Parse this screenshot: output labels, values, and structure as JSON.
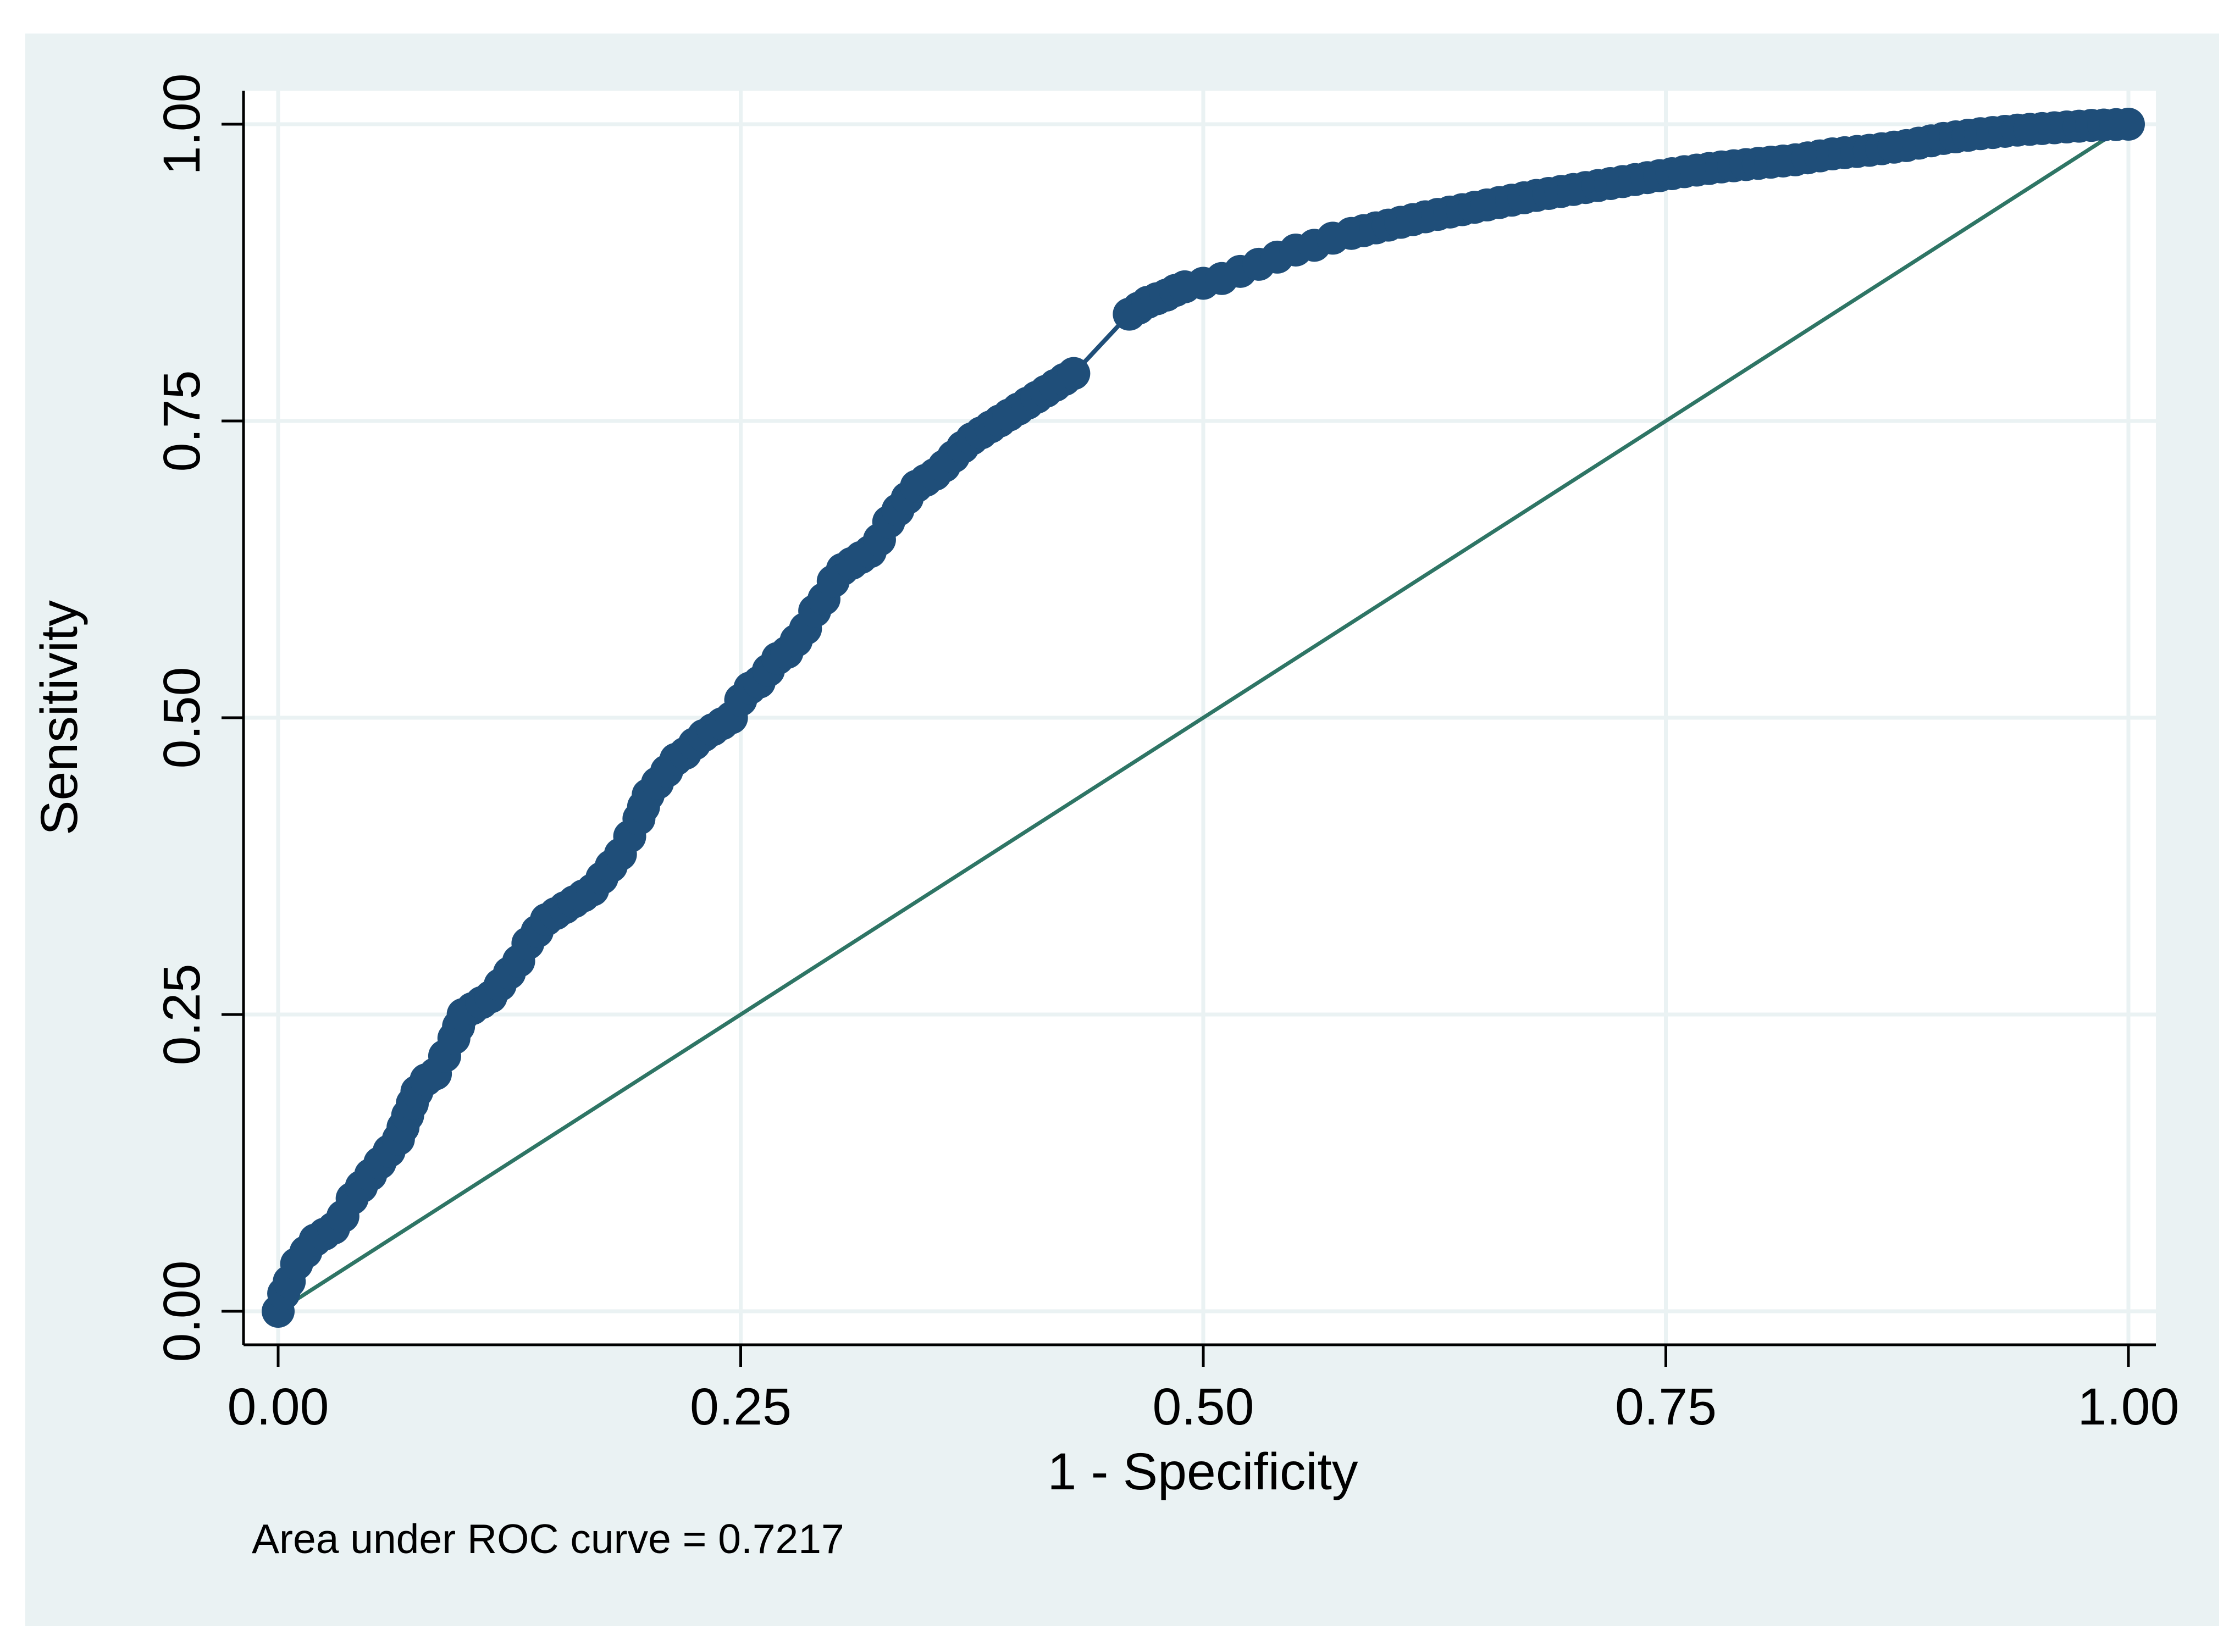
{
  "chart_data": {
    "type": "line",
    "title": "",
    "xlabel": "1 - Specificity",
    "ylabel": "Sensitivity",
    "xlim": [
      0,
      1
    ],
    "ylim": [
      0,
      1
    ],
    "xticks": [
      0,
      0.25,
      0.5,
      0.75,
      1
    ],
    "yticks": [
      0,
      0.25,
      0.5,
      0.75,
      1
    ],
    "xtick_labels": [
      "0.00",
      "0.25",
      "0.50",
      "0.75",
      "1.00"
    ],
    "ytick_labels": [
      "0.00",
      "0.25",
      "0.50",
      "0.75",
      "1.00"
    ],
    "grid": true,
    "legend": "none",
    "note": "Area under ROC curve = 0.7217",
    "colors": {
      "outer_background": "#eaf2f3",
      "plot_background": "#ffffff",
      "grid": "#eaf2f3",
      "roc_curve": "#1f4e79",
      "reference_line": "#2e7565"
    },
    "series": [
      {
        "type": "line-with-markers",
        "x": [
          0,
          0.003,
          0.006,
          0.01,
          0.015,
          0.02,
          0.025,
          0.03,
          0.035,
          0.04,
          0.045,
          0.05,
          0.055,
          0.06,
          0.065,
          0.07,
          0.075,
          0.08,
          0.085,
          0.09,
          0.095,
          0.1,
          0.105,
          0.11,
          0.115,
          0.12,
          0.125,
          0.13,
          0.135,
          0.14,
          0.145,
          0.15,
          0.155,
          0.16,
          0.165,
          0.17,
          0.175,
          0.18,
          0.185,
          0.19,
          0.195,
          0.2,
          0.205,
          0.21,
          0.215,
          0.22,
          0.225,
          0.23,
          0.235,
          0.24,
          0.245,
          0.25,
          0.255,
          0.26,
          0.265,
          0.27,
          0.275,
          0.28,
          0.285,
          0.29,
          0.295,
          0.3,
          0.305,
          0.31,
          0.315,
          0.32,
          0.325,
          0.33,
          0.335,
          0.34,
          0.345,
          0.35,
          0.355,
          0.36,
          0.365,
          0.37,
          0.375,
          0.38,
          0.385,
          0.39,
          0.395,
          0.4,
          0.405,
          0.41,
          0.415,
          0.42,
          0.425,
          0.43,
          0.46,
          0.465,
          0.47,
          0.475,
          0.48,
          0.485,
          0.49,
          0.5,
          0.51,
          0.52,
          0.53,
          0.54,
          0.55,
          0.56,
          0.57,
          0.58,
          0.6,
          0.62,
          0.64,
          0.66,
          0.68,
          0.7,
          0.72,
          0.74,
          0.76,
          0.78,
          0.8,
          0.82,
          0.84,
          0.86,
          0.88,
          0.9,
          0.92,
          0.94,
          0.96,
          0.98,
          1.0
        ],
        "y": [
          0,
          0.015,
          0.025,
          0.04,
          0.05,
          0.06,
          0.065,
          0.07,
          0.08,
          0.095,
          0.105,
          0.115,
          0.125,
          0.135,
          0.145,
          0.165,
          0.185,
          0.195,
          0.2,
          0.215,
          0.23,
          0.25,
          0.255,
          0.26,
          0.265,
          0.275,
          0.285,
          0.295,
          0.31,
          0.32,
          0.33,
          0.335,
          0.34,
          0.345,
          0.35,
          0.355,
          0.365,
          0.375,
          0.385,
          0.4,
          0.415,
          0.435,
          0.445,
          0.455,
          0.465,
          0.47,
          0.478,
          0.485,
          0.49,
          0.495,
          0.5,
          0.515,
          0.525,
          0.53,
          0.54,
          0.55,
          0.555,
          0.565,
          0.575,
          0.59,
          0.6,
          0.615,
          0.625,
          0.63,
          0.635,
          0.64,
          0.65,
          0.665,
          0.675,
          0.685,
          0.695,
          0.7,
          0.705,
          0.712,
          0.72,
          0.728,
          0.735,
          0.74,
          0.745,
          0.75,
          0.755,
          0.76,
          0.765,
          0.77,
          0.775,
          0.78,
          0.785,
          0.79,
          0.84,
          0.845,
          0.85,
          0.853,
          0.856,
          0.86,
          0.863,
          0.866,
          0.87,
          0.876,
          0.882,
          0.888,
          0.894,
          0.898,
          0.904,
          0.908,
          0.915,
          0.922,
          0.928,
          0.934,
          0.94,
          0.945,
          0.95,
          0.955,
          0.96,
          0.964,
          0.967,
          0.97,
          0.975,
          0.978,
          0.982,
          0.988,
          0.992,
          0.995,
          0.997,
          0.999,
          1.0
        ]
      },
      {
        "type": "reference-line",
        "x": [
          0,
          1
        ],
        "y": [
          0,
          1
        ]
      }
    ]
  }
}
